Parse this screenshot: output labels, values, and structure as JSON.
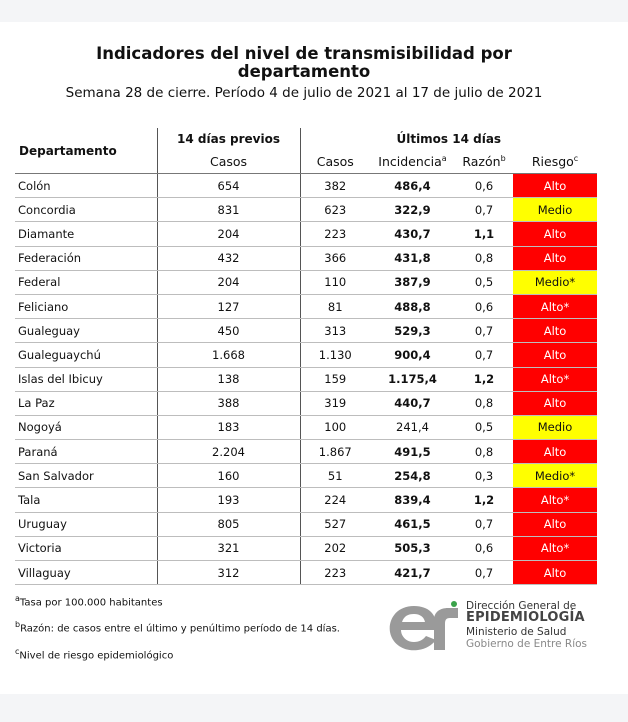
{
  "title_line1": "Indicadores del nivel de transmisibilidad por",
  "title_line2": "departamento",
  "subtitle": "Semana 28 de cierre. Período 4 de julio de 2021 al 17 de julio de 2021",
  "headers": {
    "departamento": "Departamento",
    "previos": "14 días previos",
    "ultimos": "Últimos 14 días",
    "casos": "Casos",
    "incidencia": "Incidencia",
    "incidencia_sup": "a",
    "razon": "Razón",
    "razon_sup": "b",
    "riesgo": "Riesgo",
    "riesgo_sup": "c"
  },
  "colors": {
    "alto": "#ff0000",
    "medio": "#ffff00"
  },
  "rows": [
    {
      "dep": "Colón",
      "prev": "654",
      "casos": "382",
      "inc": "486,4",
      "razon": "0,6",
      "razon_bold": false,
      "riesgo": "Alto",
      "level": "alto"
    },
    {
      "dep": "Concordia",
      "prev": "831",
      "casos": "623",
      "inc": "322,9",
      "razon": "0,7",
      "razon_bold": false,
      "riesgo": "Medio",
      "level": "medio"
    },
    {
      "dep": "Diamante",
      "prev": "204",
      "casos": "223",
      "inc": "430,7",
      "razon": "1,1",
      "razon_bold": true,
      "riesgo": "Alto",
      "level": "alto"
    },
    {
      "dep": "Federación",
      "prev": "432",
      "casos": "366",
      "inc": "431,8",
      "razon": "0,8",
      "razon_bold": false,
      "riesgo": "Alto",
      "level": "alto"
    },
    {
      "dep": "Federal",
      "prev": "204",
      "casos": "110",
      "inc": "387,9",
      "razon": "0,5",
      "razon_bold": false,
      "riesgo": "Medio*",
      "level": "medio"
    },
    {
      "dep": "Feliciano",
      "prev": "127",
      "casos": "81",
      "inc": "488,8",
      "razon": "0,6",
      "razon_bold": false,
      "riesgo": "Alto*",
      "level": "alto"
    },
    {
      "dep": "Gualeguay",
      "prev": "450",
      "casos": "313",
      "inc": "529,3",
      "razon": "0,7",
      "razon_bold": false,
      "riesgo": "Alto",
      "level": "alto"
    },
    {
      "dep": "Gualeguaychú",
      "prev": "1.668",
      "casos": "1.130",
      "inc": "900,4",
      "razon": "0,7",
      "razon_bold": false,
      "riesgo": "Alto",
      "level": "alto"
    },
    {
      "dep": "Islas del Ibicuy",
      "prev": "138",
      "casos": "159",
      "inc": "1.175,4",
      "razon": "1,2",
      "razon_bold": true,
      "riesgo": "Alto*",
      "level": "alto"
    },
    {
      "dep": "La Paz",
      "prev": "388",
      "casos": "319",
      "inc": "440,7",
      "razon": "0,8",
      "razon_bold": false,
      "riesgo": "Alto",
      "level": "alto"
    },
    {
      "dep": "Nogoyá",
      "prev": "183",
      "casos": "100",
      "inc": "241,4",
      "razon": "0,5",
      "razon_bold": false,
      "riesgo": "Medio",
      "level": "medio",
      "inc_normal": true
    },
    {
      "dep": "Paraná",
      "prev": "2.204",
      "casos": "1.867",
      "inc": "491,5",
      "razon": "0,8",
      "razon_bold": false,
      "riesgo": "Alto",
      "level": "alto"
    },
    {
      "dep": "San Salvador",
      "prev": "160",
      "casos": "51",
      "inc": "254,8",
      "razon": "0,3",
      "razon_bold": false,
      "riesgo": "Medio*",
      "level": "medio"
    },
    {
      "dep": "Tala",
      "prev": "193",
      "casos": "224",
      "inc": "839,4",
      "razon": "1,2",
      "razon_bold": true,
      "riesgo": "Alto*",
      "level": "alto"
    },
    {
      "dep": "Uruguay",
      "prev": "805",
      "casos": "527",
      "inc": "461,5",
      "razon": "0,7",
      "razon_bold": false,
      "riesgo": "Alto",
      "level": "alto"
    },
    {
      "dep": "Victoria",
      "prev": "321",
      "casos": "202",
      "inc": "505,3",
      "razon": "0,6",
      "razon_bold": false,
      "riesgo": "Alto*",
      "level": "alto"
    },
    {
      "dep": "Villaguay",
      "prev": "312",
      "casos": "223",
      "inc": "421,7",
      "razon": "0,7",
      "razon_bold": false,
      "riesgo": "Alto",
      "level": "alto"
    }
  ],
  "notes": [
    {
      "sup": "a",
      "text": "Tasa por 100.000 habitantes"
    },
    {
      "sup": "b",
      "text": "Razón: de casos entre el último y penúltimo período de 14 días."
    },
    {
      "sup": "c",
      "text": "Nivel de riesgo epidemiológico"
    }
  ],
  "logo": {
    "mark": "er",
    "line1": "Dirección General de",
    "line2": "EPIDEMIOLOGÍA",
    "line3": "Ministerio de Salud",
    "line4": "Gobierno de Entre Ríos"
  }
}
